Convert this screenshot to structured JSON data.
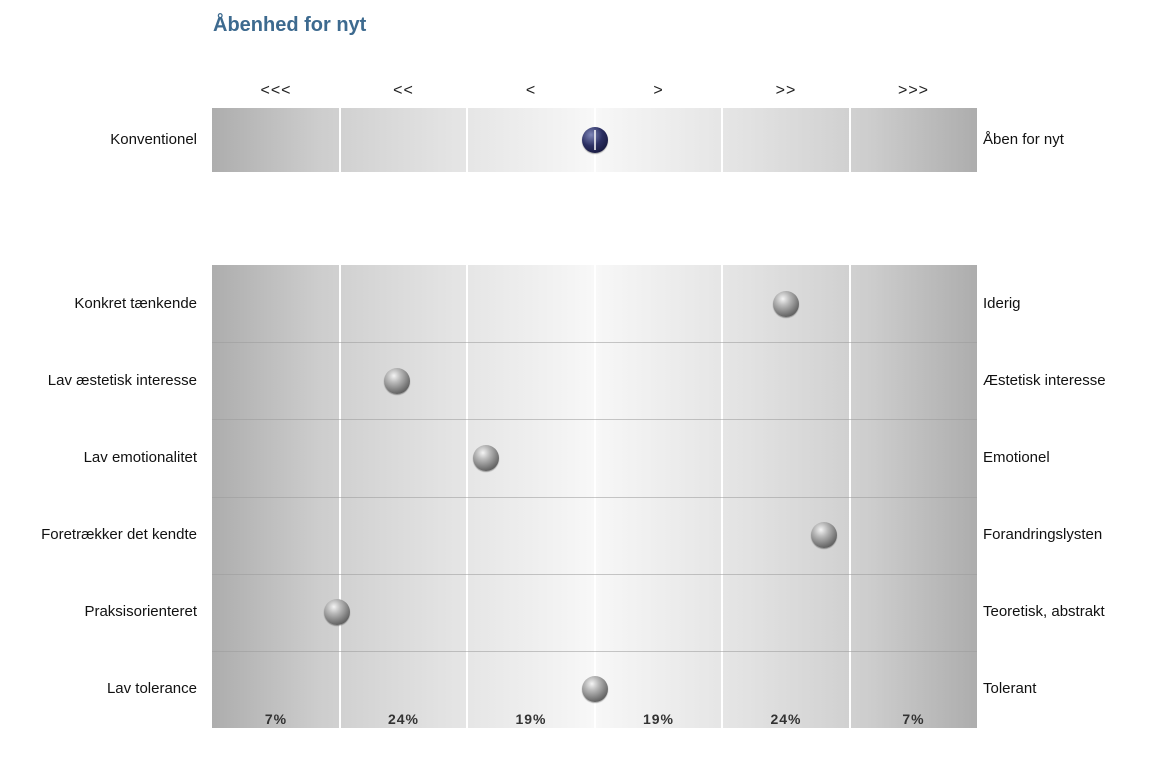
{
  "chart_data": {
    "type": "scatter",
    "title": "Åbenhed for nyt",
    "scale_labels": [
      "<<<",
      "<<",
      "<",
      ">",
      ">>",
      ">>>"
    ],
    "distribution_labels": [
      "7%",
      "24%",
      "19%",
      "19%",
      "24%",
      "7%"
    ],
    "x_range": [
      0,
      6
    ],
    "main": {
      "left": "Konventionel",
      "right": "Åben for nyt",
      "value": 3.0
    },
    "rows": [
      {
        "left": "Konkret tænkende",
        "right": "Iderig",
        "value": 4.5
      },
      {
        "left": "Lav æstetisk interesse",
        "right": "Æstetisk interesse",
        "value": 1.45
      },
      {
        "left": "Lav emotionalitet",
        "right": "Emotionel",
        "value": 2.15
      },
      {
        "left": "Foretrækker det kendte",
        "right": "Forandringslysten",
        "value": 4.8
      },
      {
        "left": "Praksisorienteret",
        "right": "Teoretisk, abstrakt",
        "value": 0.98
      },
      {
        "left": "Lav tolerance",
        "right": "Tolerant",
        "value": 3.0
      }
    ]
  }
}
